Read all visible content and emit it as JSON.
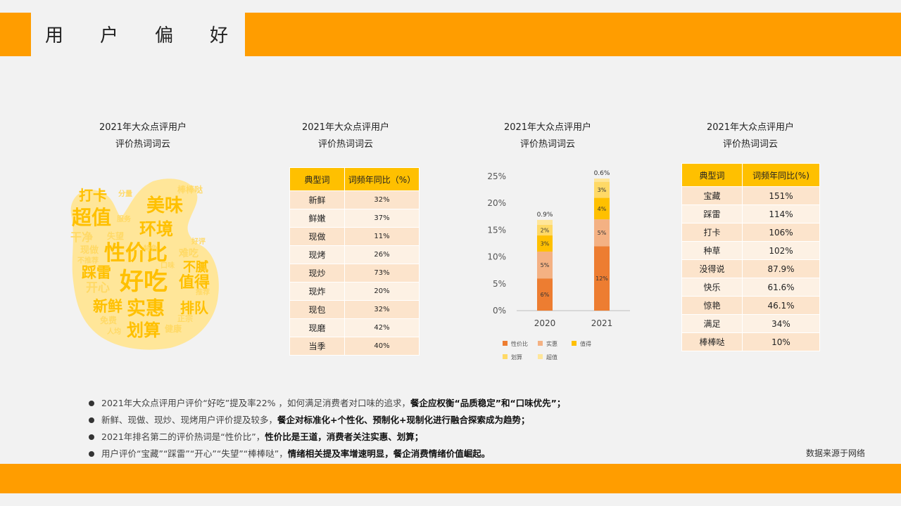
{
  "header": {
    "title": "用户偏好"
  },
  "panels": [
    {
      "caption_line1": "2021年大众点评用户",
      "caption_line2": "评价热词词云"
    },
    {
      "caption_line1": "2021年大众点评用户",
      "caption_line2": "评价热词词云"
    },
    {
      "caption_line1": "2021年大众点评用户",
      "caption_line2": "评价热词词云"
    },
    {
      "caption_line1": "2021年大众点评用户",
      "caption_line2": "评价热词词云"
    }
  ],
  "wordcloud": {
    "words": [
      "打卡",
      "超值",
      "美味",
      "环境",
      "干净",
      "性价比",
      "现做",
      "不推荐",
      "失望",
      "踩雷",
      "难吃",
      "不腻",
      "开心",
      "好吃",
      "值得",
      "新鲜",
      "实惠",
      "排队",
      "免费",
      "正宗",
      "划算",
      "健康",
      "棒棒哒",
      "分量",
      "服务",
      "人均",
      "好评",
      "推荐",
      "口味",
      "特色"
    ],
    "colors": {
      "main": "#ffc000",
      "secondary": "#ffd966",
      "bg": "#ffe699"
    }
  },
  "table1": {
    "headers": [
      "典型词",
      "词频年同比（%）"
    ],
    "rows": [
      [
        "新鲜",
        "32%"
      ],
      [
        "鲜嫩",
        "37%"
      ],
      [
        "现做",
        "11%"
      ],
      [
        "现烤",
        "26%"
      ],
      [
        "现炒",
        "73%"
      ],
      [
        "现炸",
        "20%"
      ],
      [
        "现包",
        "32%"
      ],
      [
        "现磨",
        "42%"
      ],
      [
        "当季",
        "40%"
      ]
    ]
  },
  "chart_data": {
    "type": "bar",
    "stacked": true,
    "categories": [
      "2020",
      "2021"
    ],
    "series": [
      {
        "name": "性价比",
        "color": "#ed7d31",
        "values": [
          6,
          12
        ]
      },
      {
        "name": "实惠",
        "color": "#f4b183",
        "values": [
          5,
          5
        ]
      },
      {
        "name": "值得",
        "color": "#ffc000",
        "values": [
          3,
          4
        ]
      },
      {
        "name": "划算",
        "color": "#ffd966",
        "values": [
          2,
          3
        ]
      },
      {
        "name": "超值",
        "color": "#ffe699",
        "values": [
          0.9,
          0.6
        ]
      }
    ],
    "data_labels": [
      [
        "6%",
        "5%",
        "3%",
        "2%",
        "0.9%"
      ],
      [
        "12%",
        "5%",
        "4%",
        "3%",
        "0.6%"
      ]
    ],
    "yticks": [
      "0%",
      "5%",
      "10%",
      "15%",
      "20%",
      "25%"
    ],
    "ylim": [
      0,
      25
    ],
    "legend_position": "bottom"
  },
  "table2": {
    "headers": [
      "典型词",
      "词频年同比(%)"
    ],
    "rows": [
      [
        "宝藏",
        "151%"
      ],
      [
        "踩雷",
        "114%"
      ],
      [
        "打卡",
        "106%"
      ],
      [
        "种草",
        "102%"
      ],
      [
        "没得说",
        "87.9%"
      ],
      [
        "快乐",
        "61.6%"
      ],
      [
        "惊艳",
        "46.1%"
      ],
      [
        "满足",
        "34%"
      ],
      [
        "棒棒哒",
        "10%"
      ]
    ]
  },
  "bullets": [
    {
      "normal": "2021年大众点评用户评价“好吃”提及率22% ，如何满足消费者对口味的追求，",
      "bold": "餐企应权衡“品质稳定”和“口味优先”；"
    },
    {
      "normal": "新鲜、现做、现炒、现烤用户评价提及较多，",
      "bold": "餐企对标准化+个性化、预制化+现制化进行融合探索成为趋势；"
    },
    {
      "normal": "2021年排名第二的评价热词是“性价比”，",
      "bold": "性价比是王道，消费者关注实惠、划算；"
    },
    {
      "normal": "用户评价“宝藏”“踩雷”“开心”“失望”“棒棒哒”，",
      "bold": "情绪相关提及率增速明显，餐企消费情绪价值崛起。"
    }
  ],
  "source": "数据来源于网络"
}
